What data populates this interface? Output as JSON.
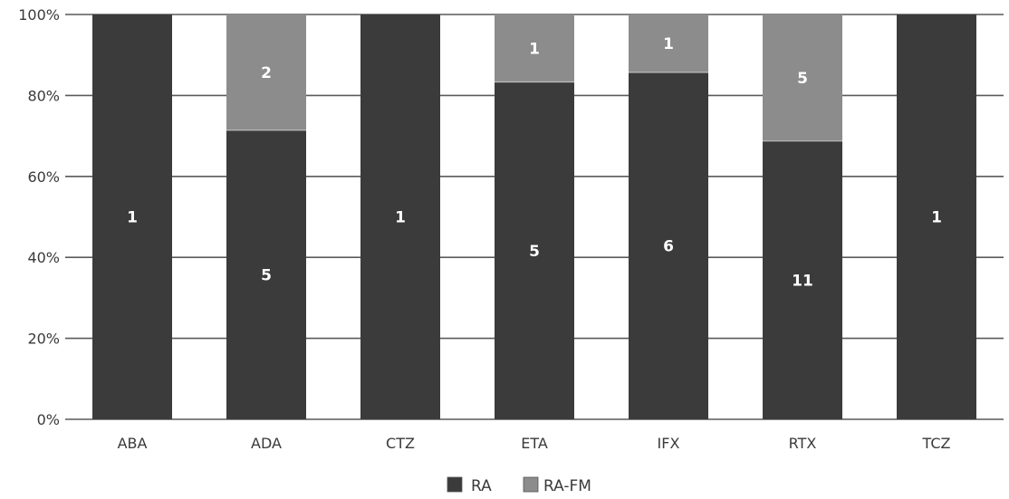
{
  "chart_data": {
    "type": "bar",
    "stacked": true,
    "normalized": true,
    "title": "",
    "xlabel": "",
    "ylabel": "",
    "categories": [
      "ABA",
      "ADA",
      "CTZ",
      "ETA",
      "IFX",
      "RTX",
      "TCZ"
    ],
    "series": [
      {
        "name": "RA",
        "color": "#3b3b3b",
        "values": [
          1,
          5,
          1,
          5,
          6,
          11,
          1
        ],
        "labels": [
          "1",
          "5",
          "1",
          "5",
          "6",
          "11",
          "1"
        ]
      },
      {
        "name": "RA-FM",
        "color": "#8c8c8c",
        "values": [
          0,
          2,
          0,
          1,
          1,
          5,
          0
        ],
        "labels": [
          "",
          "2",
          "",
          "1",
          "1",
          "5",
          ""
        ]
      }
    ],
    "y_ticks": [
      "0%",
      "20%",
      "40%",
      "60%",
      "80%",
      "100%"
    ],
    "ylim": [
      0,
      100
    ],
    "grid": true,
    "legend_position": "bottom"
  }
}
